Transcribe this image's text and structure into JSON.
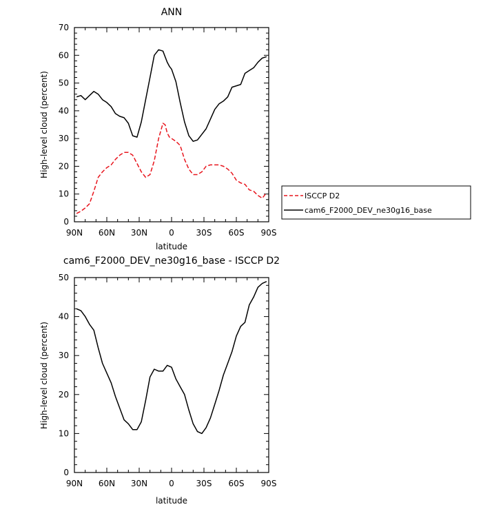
{
  "chart_data": [
    {
      "type": "line",
      "title": "ANN",
      "xlabel": "latitude",
      "ylabel": "High-level cloud (percent)",
      "xlim": [
        -90,
        90
      ],
      "ylim": [
        0,
        70
      ],
      "x_ticks": [
        -90,
        -60,
        -30,
        0,
        30,
        60,
        90
      ],
      "x_tick_labels": [
        "90N",
        "60N",
        "30N",
        "0",
        "30S",
        "60S",
        "90S"
      ],
      "y_ticks": [
        0,
        10,
        20,
        30,
        40,
        50,
        60,
        70
      ],
      "y_tick_labels": [
        "0",
        "10",
        "20",
        "30",
        "40",
        "50",
        "60",
        "70"
      ],
      "legend_position": "right",
      "series": [
        {
          "name": "ISCCP D2",
          "color": "#e8141c",
          "dash": "dashed",
          "x": [
            -88,
            -84,
            -80,
            -76,
            -72,
            -68,
            -64,
            -60,
            -56,
            -52,
            -48,
            -44,
            -40,
            -36,
            -32,
            -28,
            -24,
            -20,
            -16,
            -12,
            -8,
            -6,
            -4,
            -2,
            0,
            4,
            8,
            12,
            16,
            20,
            24,
            28,
            32,
            36,
            40,
            44,
            48,
            52,
            56,
            60,
            64,
            68,
            72,
            76,
            80,
            84,
            88
          ],
          "values": [
            3,
            3.8,
            5,
            6.5,
            11,
            16,
            18,
            19.5,
            20.5,
            22.5,
            24,
            25,
            25,
            24,
            21,
            18,
            16,
            17,
            22,
            30,
            35.5,
            35,
            32,
            30.5,
            30,
            29,
            27.5,
            22.5,
            19,
            17,
            17,
            18,
            20,
            20.5,
            20.5,
            20.5,
            20,
            19,
            17.5,
            15,
            14,
            13.5,
            11.5,
            11,
            9.5,
            8.5,
            10.5
          ]
        },
        {
          "name": "cam6_F2000_DEV_ne30g16_base",
          "color": "#000000",
          "dash": "solid",
          "x": [
            -88,
            -84,
            -80,
            -76,
            -72,
            -68,
            -64,
            -60,
            -56,
            -52,
            -48,
            -44,
            -40,
            -36,
            -32,
            -28,
            -24,
            -20,
            -16,
            -12,
            -8,
            -6,
            -4,
            -2,
            0,
            4,
            8,
            12,
            16,
            20,
            24,
            28,
            32,
            36,
            40,
            44,
            48,
            52,
            56,
            60,
            64,
            68,
            72,
            76,
            80,
            84,
            88
          ],
          "values": [
            45,
            45.5,
            44,
            45.5,
            47,
            46,
            44,
            43,
            41.5,
            39,
            38,
            37.5,
            35.5,
            31,
            30.5,
            36,
            44,
            52,
            60,
            62,
            61.5,
            59.5,
            57.5,
            56,
            55,
            50.5,
            43,
            36,
            31,
            29,
            29.5,
            31.5,
            33.5,
            37,
            40.5,
            42.5,
            43.5,
            45,
            48.5,
            49,
            49.5,
            53.5,
            54.5,
            55.5,
            57.5,
            59,
            59.5
          ]
        }
      ]
    },
    {
      "type": "line",
      "title": "cam6_F2000_DEV_ne30g16_base - ISCCP D2",
      "xlabel": "latitude",
      "ylabel": "High-level cloud (percent)",
      "xlim": [
        -90,
        90
      ],
      "ylim": [
        0,
        50
      ],
      "x_ticks": [
        -90,
        -60,
        -30,
        0,
        30,
        60,
        90
      ],
      "x_tick_labels": [
        "90N",
        "60N",
        "30N",
        "0",
        "30S",
        "60S",
        "90S"
      ],
      "y_ticks": [
        0,
        10,
        20,
        30,
        40,
        50
      ],
      "y_tick_labels": [
        "0",
        "10",
        "20",
        "30",
        "40",
        "50"
      ],
      "series": [
        {
          "color": "#000000",
          "dash": "solid",
          "x": [
            -88,
            -84,
            -80,
            -76,
            -72,
            -68,
            -64,
            -60,
            -56,
            -52,
            -48,
            -44,
            -40,
            -36,
            -32,
            -28,
            -24,
            -20,
            -16,
            -12,
            -8,
            -4,
            0,
            4,
            8,
            12,
            16,
            20,
            24,
            28,
            32,
            36,
            40,
            44,
            48,
            52,
            56,
            60,
            64,
            68,
            72,
            76,
            80,
            84,
            88
          ],
          "values": [
            42,
            41.5,
            40,
            38,
            36.5,
            32,
            28,
            25.5,
            23,
            19.5,
            16.5,
            13.5,
            12.5,
            11,
            11,
            13,
            18.5,
            24.5,
            26.5,
            26,
            26,
            27.5,
            27,
            24,
            22,
            20,
            16,
            12.5,
            10.5,
            10,
            11.5,
            14,
            17.5,
            21,
            25,
            28,
            31,
            35,
            37.5,
            38.5,
            43,
            45,
            47.5,
            48.5,
            49
          ]
        }
      ]
    }
  ]
}
